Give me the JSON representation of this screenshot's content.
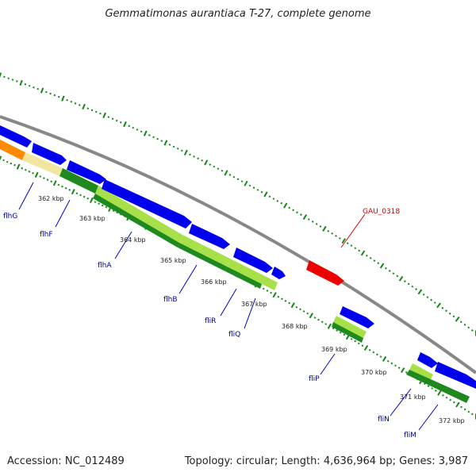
{
  "title": "Gemmatimonas aurantiaca T-27, complete genome",
  "footer": {
    "accession_label": "Accession:",
    "accession": "NC_012489",
    "topology_label": "Topology:",
    "topology": "circular",
    "length_label": "Length:",
    "length": "4,636,964 bp",
    "genes_label": "Genes:",
    "genes": "3,987"
  },
  "colors": {
    "forward_cds": "#0000ee",
    "highlight_cds": "#ee0000",
    "backbone": "#888888",
    "tick_mark": "#118811",
    "strand_dark": "#1e8a1e",
    "strand_light": "#a8e04a",
    "strand_pale": "#f0e6a0",
    "strand_orange": "#ff8c00"
  },
  "diagram": {
    "kind": "circular genome map (zoomed)",
    "ticks": [
      "362 kbp",
      "363 kbp",
      "364 kbp",
      "365 kbp",
      "366 kbp",
      "367 kbp",
      "368 kbp",
      "369 kbp",
      "370 kbp",
      "371 kbp",
      "372 kbp"
    ],
    "genes": [
      {
        "name": "flhG",
        "strand": "reverse"
      },
      {
        "name": "flhF",
        "strand": "reverse"
      },
      {
        "name": "flhA",
        "strand": "reverse"
      },
      {
        "name": "flhB",
        "strand": "reverse"
      },
      {
        "name": "fliR",
        "strand": "reverse"
      },
      {
        "name": "fliQ",
        "strand": "reverse"
      },
      {
        "name": "fliP",
        "strand": "reverse"
      },
      {
        "name": "fliN",
        "strand": "reverse"
      },
      {
        "name": "fliM",
        "strand": "reverse"
      },
      {
        "name": "GAU_0318",
        "strand": "forward"
      }
    ]
  }
}
